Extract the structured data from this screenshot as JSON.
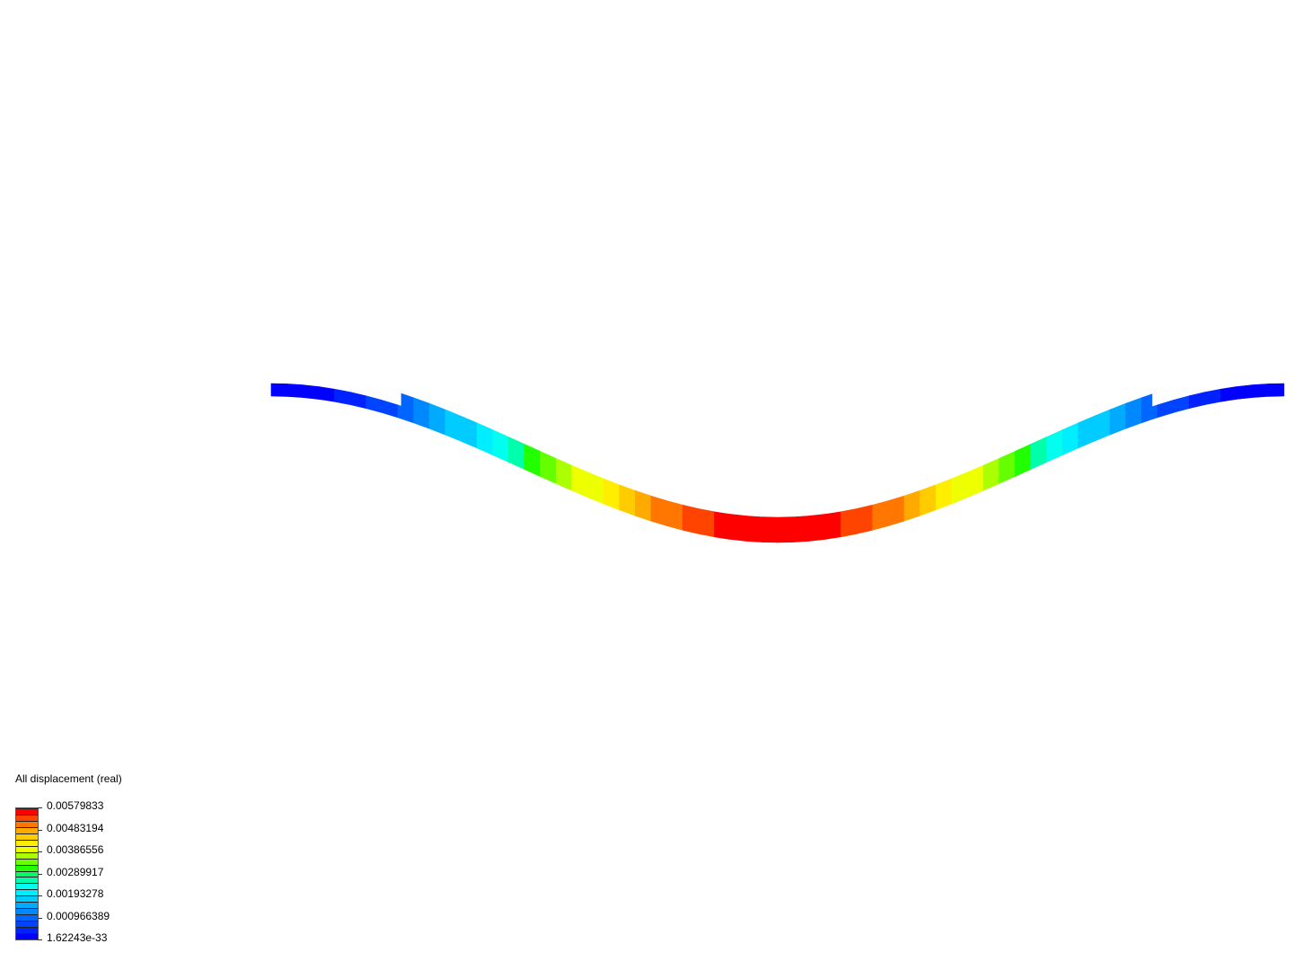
{
  "legend": {
    "title": "All displacement (real)",
    "ticks": [
      "0.00579833",
      "0.00483194",
      "0.00386556",
      "0.00289917",
      "0.00193278",
      "0.000966389",
      "1.62243e-33"
    ],
    "max": 0.00579833,
    "min": 1.62243e-33,
    "band_colors": [
      "#0000ff",
      "#0022ff",
      "#0044ff",
      "#0066ff",
      "#0088ff",
      "#00aaff",
      "#00ccff",
      "#00eeff",
      "#00ffee",
      "#00ffaa",
      "#00ff66",
      "#22ff00",
      "#66ff00",
      "#aaff00",
      "#eeff00",
      "#ffee00",
      "#ffcc00",
      "#ffaa00",
      "#ff7700",
      "#ff4400",
      "#ff0000"
    ]
  },
  "result": {
    "quantity": "displacement",
    "max_location": "beam midspan",
    "min_location": "beam ends"
  }
}
